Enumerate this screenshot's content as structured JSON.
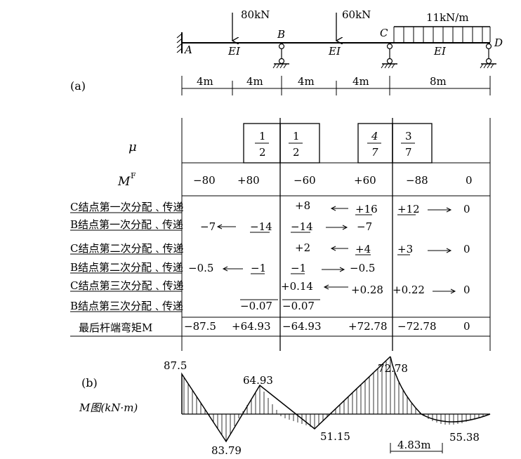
{
  "beam": {
    "label_a": "(a)",
    "loads": {
      "p1": "80kN",
      "p2": "60kN",
      "q": "11kN/m"
    },
    "points": {
      "A": "A",
      "B": "B",
      "C": "C",
      "D": "D"
    },
    "ei": "EI",
    "spans": [
      "4m",
      "4m",
      "4m",
      "4m",
      "8m"
    ]
  },
  "table": {
    "mu_label": "μ",
    "mu_values": [
      {
        "num": "1",
        "den": "2"
      },
      {
        "num": "1",
        "den": "2"
      },
      {
        "num": "4",
        "den": "7"
      },
      {
        "num": "3",
        "den": "7"
      }
    ],
    "mf_label": "M",
    "mf_sup": "F",
    "mf_values": [
      "−80",
      "+80",
      "−60",
      "+60",
      "−88",
      "0"
    ],
    "rows": [
      {
        "label": "C结点第一次分配﹑传递",
        "cells": [
          "",
          "",
          "+8",
          "+16",
          "+12",
          "0"
        ]
      },
      {
        "label": "B结点第一次分配﹑传递",
        "cells": [
          "−7",
          "−14",
          "−14",
          "−7",
          "",
          ""
        ]
      },
      {
        "label": "C结点第二次分配﹑传递",
        "cells": [
          "",
          "",
          "+2",
          "+4",
          "+3",
          "0"
        ]
      },
      {
        "label": "B结点第二次分配﹑传递",
        "cells": [
          "−0.5",
          "−1",
          "−1",
          "−0.5",
          "",
          ""
        ]
      },
      {
        "label": "C结点第三次分配﹑传递",
        "cells": [
          "",
          "",
          "+0.14",
          "+0.28",
          "+0.22",
          "0"
        ]
      },
      {
        "label": "B结点第三次分配﹑传递",
        "cells": [
          "",
          "−0.07",
          "−0.07",
          "",
          "",
          ""
        ]
      }
    ],
    "final_label": "最后杆端弯矩M",
    "final_values": [
      "−87.5",
      "+64.93",
      "−64.93",
      "+72.78",
      "−72.78",
      "0"
    ]
  },
  "moment_diagram": {
    "label_b": "(b)",
    "title": "M图(kN·m)",
    "values": [
      "87.5",
      "83.79",
      "64.93",
      "51.15",
      "72.78",
      "55.38"
    ],
    "dim": "4.83m"
  }
}
